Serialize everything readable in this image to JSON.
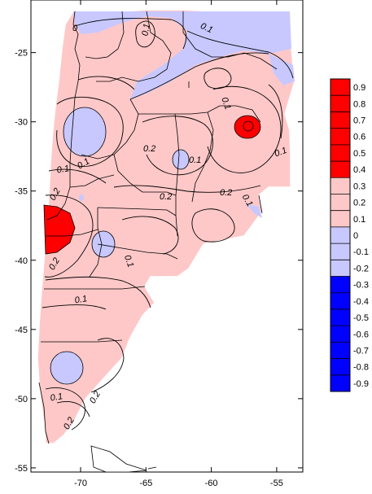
{
  "map": {
    "lon_ticks": [
      {
        "value": -70,
        "label": "-70"
      },
      {
        "value": -65,
        "label": "-65"
      },
      {
        "value": -60,
        "label": "-60"
      },
      {
        "value": -55,
        "label": "-55"
      }
    ],
    "lat_ticks": [
      {
        "value": -25,
        "label": "-25"
      },
      {
        "value": -30,
        "label": "-30"
      },
      {
        "value": -35,
        "label": "-35"
      },
      {
        "value": -40,
        "label": "-40"
      },
      {
        "value": -45,
        "label": "-45"
      },
      {
        "value": -50,
        "label": "-50"
      },
      {
        "value": -55,
        "label": "-55"
      }
    ],
    "lon_range": [
      -73.8,
      -53.0
    ],
    "lat_range": [
      -55.3,
      -21.2
    ],
    "contour_labels": [
      "0",
      "0.1",
      "0.1",
      "0.1",
      "0.1",
      "0.1",
      "0.1",
      "0.2",
      "0.2",
      "0.2",
      "0.2",
      "0.1",
      "0.1",
      "0.1",
      "0.2",
      "0.1",
      "0.2",
      "0.2",
      "0.1"
    ]
  },
  "legend": {
    "levels": [
      {
        "label": "0.9",
        "color": "#ff0000"
      },
      {
        "label": "0.8",
        "color": "#ff0000"
      },
      {
        "label": "0.7",
        "color": "#ff0000"
      },
      {
        "label": "0.6",
        "color": "#ff0000"
      },
      {
        "label": "0.5",
        "color": "#ff0000"
      },
      {
        "label": "0.4",
        "color": "#ff0000"
      },
      {
        "label": "0.3",
        "color": "#ffc8c8"
      },
      {
        "label": "0.2",
        "color": "#ffc8c8"
      },
      {
        "label": "0.1",
        "color": "#ffc8c8"
      },
      {
        "label": "0",
        "color": "#c8c8ff"
      },
      {
        "label": "-0.1",
        "color": "#c8c8ff"
      },
      {
        "label": "-0.2",
        "color": "#c8c8ff"
      },
      {
        "label": "-0.3",
        "color": "#0000ff"
      },
      {
        "label": "-0.4",
        "color": "#0000ff"
      },
      {
        "label": "-0.5",
        "color": "#0000ff"
      },
      {
        "label": "-0.6",
        "color": "#0000ff"
      },
      {
        "label": "-0.7",
        "color": "#0000ff"
      },
      {
        "label": "-0.8",
        "color": "#0000ff"
      },
      {
        "label": "-0.9",
        "color": "#0000ff"
      }
    ],
    "colors": {
      "strong_positive": "#ff0000",
      "weak_positive": "#ffc8c8",
      "weak_negative": "#c8c8ff",
      "strong_negative": "#0000ff"
    }
  }
}
